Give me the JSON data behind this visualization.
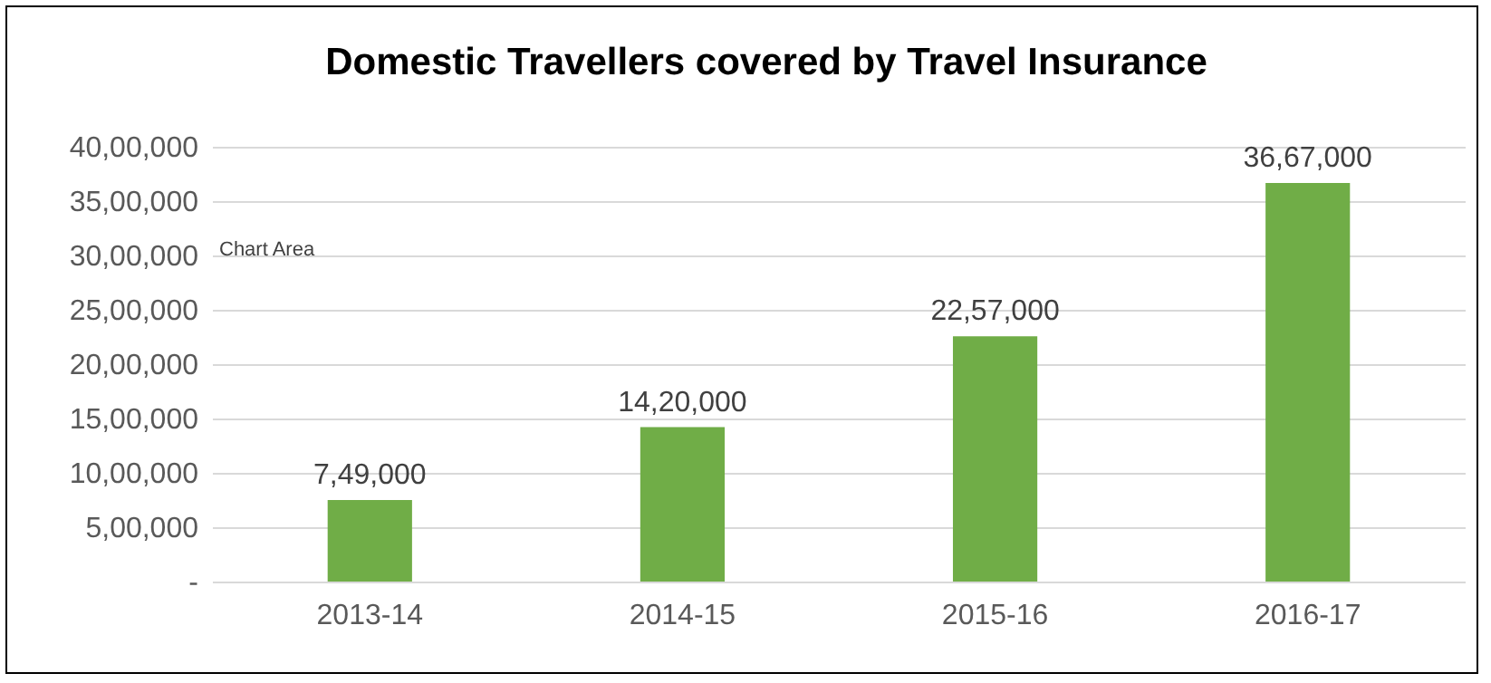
{
  "chart_data": {
    "type": "bar",
    "title": "Domestic Travellers covered by Travel Insurance",
    "categories": [
      "2013-14",
      "2014-15",
      "2015-16",
      "2016-17"
    ],
    "values": [
      749000,
      1420000,
      2257000,
      3667000
    ],
    "value_labels": [
      "7,49,000",
      "14,20,000",
      "22,57,000",
      "36,67,000"
    ],
    "color": "#70ad47",
    "ylim": [
      0,
      4000000
    ],
    "yticks": [
      {
        "value": 0,
        "label": "-"
      },
      {
        "value": 500000,
        "label": "5,00,000"
      },
      {
        "value": 1000000,
        "label": "10,00,000"
      },
      {
        "value": 1500000,
        "label": "15,00,000"
      },
      {
        "value": 2000000,
        "label": "20,00,000"
      },
      {
        "value": 2500000,
        "label": "25,00,000"
      },
      {
        "value": 3000000,
        "label": "30,00,000"
      },
      {
        "value": 3500000,
        "label": "35,00,000"
      },
      {
        "value": 4000000,
        "label": "40,00,000"
      }
    ],
    "grid": "y",
    "annotations": [
      "Chart Area"
    ]
  }
}
